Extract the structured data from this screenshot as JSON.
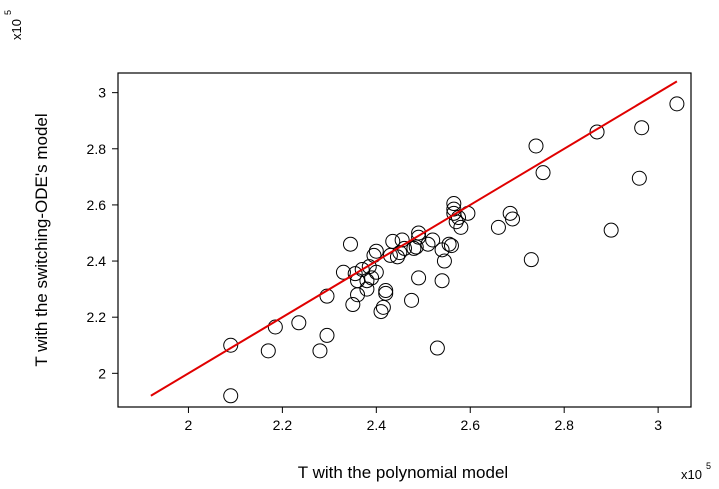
{
  "chart_data": {
    "type": "scatter",
    "title": "",
    "xlabel": "T with the polynomial model",
    "ylabel": "T with the switching-ODE's model",
    "x_scale_label": "x10",
    "x_scale_exponent": "5",
    "y_scale_label": "x10",
    "y_scale_exponent": "5",
    "xlim": [
      1.85,
      3.07
    ],
    "ylim": [
      1.88,
      3.07
    ],
    "xticks": [
      2,
      2.2,
      2.4,
      2.6,
      2.8,
      3
    ],
    "yticks": [
      2,
      2.2,
      2.4,
      2.6,
      2.8,
      3
    ],
    "xtick_labels": [
      "2",
      "2.2",
      "2.4",
      "2.6",
      "2.8",
      "3"
    ],
    "ytick_labels": [
      "2",
      "2.2",
      "2.4",
      "2.6",
      "2.8",
      "3"
    ],
    "grid": false,
    "marker_color": "#000000",
    "fit_line": {
      "color": "#e00000",
      "x": [
        1.92,
        3.04
      ],
      "y": [
        1.92,
        3.04
      ]
    },
    "points": [
      [
        2.09,
        1.92
      ],
      [
        2.09,
        2.1
      ],
      [
        2.17,
        2.08
      ],
      [
        2.185,
        2.165
      ],
      [
        2.235,
        2.18
      ],
      [
        2.28,
        2.08
      ],
      [
        2.295,
        2.135
      ],
      [
        2.295,
        2.275
      ],
      [
        2.33,
        2.36
      ],
      [
        2.345,
        2.46
      ],
      [
        2.35,
        2.245
      ],
      [
        2.355,
        2.355
      ],
      [
        2.36,
        2.33
      ],
      [
        2.36,
        2.28
      ],
      [
        2.37,
        2.37
      ],
      [
        2.38,
        2.3
      ],
      [
        2.38,
        2.33
      ],
      [
        2.385,
        2.38
      ],
      [
        2.39,
        2.34
      ],
      [
        2.395,
        2.42
      ],
      [
        2.4,
        2.435
      ],
      [
        2.4,
        2.36
      ],
      [
        2.41,
        2.22
      ],
      [
        2.415,
        2.235
      ],
      [
        2.42,
        2.285
      ],
      [
        2.42,
        2.295
      ],
      [
        2.43,
        2.42
      ],
      [
        2.435,
        2.47
      ],
      [
        2.445,
        2.415
      ],
      [
        2.45,
        2.43
      ],
      [
        2.455,
        2.475
      ],
      [
        2.46,
        2.445
      ],
      [
        2.475,
        2.26
      ],
      [
        2.48,
        2.445
      ],
      [
        2.485,
        2.45
      ],
      [
        2.49,
        2.5
      ],
      [
        2.49,
        2.485
      ],
      [
        2.49,
        2.34
      ],
      [
        2.51,
        2.46
      ],
      [
        2.52,
        2.475
      ],
      [
        2.53,
        2.09
      ],
      [
        2.54,
        2.44
      ],
      [
        2.54,
        2.33
      ],
      [
        2.545,
        2.4
      ],
      [
        2.555,
        2.46
      ],
      [
        2.56,
        2.455
      ],
      [
        2.565,
        2.605
      ],
      [
        2.565,
        2.585
      ],
      [
        2.565,
        2.57
      ],
      [
        2.57,
        2.54
      ],
      [
        2.575,
        2.555
      ],
      [
        2.58,
        2.52
      ],
      [
        2.595,
        2.57
      ],
      [
        2.66,
        2.52
      ],
      [
        2.685,
        2.57
      ],
      [
        2.69,
        2.55
      ],
      [
        2.73,
        2.405
      ],
      [
        2.74,
        2.81
      ],
      [
        2.755,
        2.715
      ],
      [
        2.87,
        2.86
      ],
      [
        2.9,
        2.51
      ],
      [
        2.96,
        2.695
      ],
      [
        2.965,
        2.875
      ],
      [
        3.04,
        2.96
      ]
    ]
  }
}
